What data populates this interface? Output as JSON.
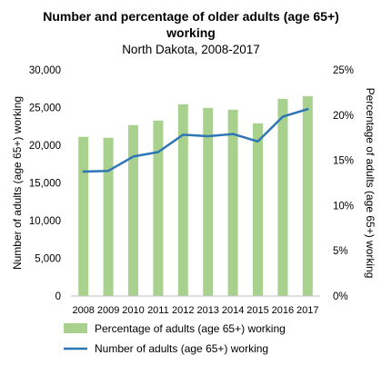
{
  "chart_data": {
    "type": "bar+line",
    "title_line1": "Number and percentage of older adults (age 65+)",
    "title_line2": "working",
    "subtitle": "North Dakota, 2008-2017",
    "categories": [
      "2008",
      "2009",
      "2010",
      "2011",
      "2012",
      "2013",
      "2014",
      "2015",
      "2016",
      "2017"
    ],
    "y_left": {
      "label": "Number of  adults (age 65+) working",
      "min": 0,
      "max": 30000,
      "ticks": [
        "0",
        "5,000",
        "10,000",
        "15,000",
        "20,000",
        "25,000",
        "30,000"
      ]
    },
    "y_right": {
      "label": "Percentage of adults (age 65+) working",
      "min": 0,
      "max": 25,
      "ticks": [
        "0%",
        "5%",
        "10%",
        "15%",
        "20%",
        "25%"
      ]
    },
    "series": [
      {
        "name": "Percentage of adults (age 65+) working",
        "type": "bar",
        "axis": "right",
        "color": "#a9d18e",
        "values": [
          17.6,
          17.5,
          18.9,
          19.4,
          21.2,
          20.8,
          20.6,
          19.1,
          21.8,
          22.1
        ]
      },
      {
        "name": "Number of adults (age 65+) working",
        "type": "line",
        "axis": "left",
        "color": "#2e75b6",
        "values": [
          16500,
          16600,
          18500,
          19100,
          21400,
          21200,
          21500,
          20500,
          23800,
          24800
        ]
      }
    ],
    "legend_position": "bottom",
    "grid": false
  }
}
